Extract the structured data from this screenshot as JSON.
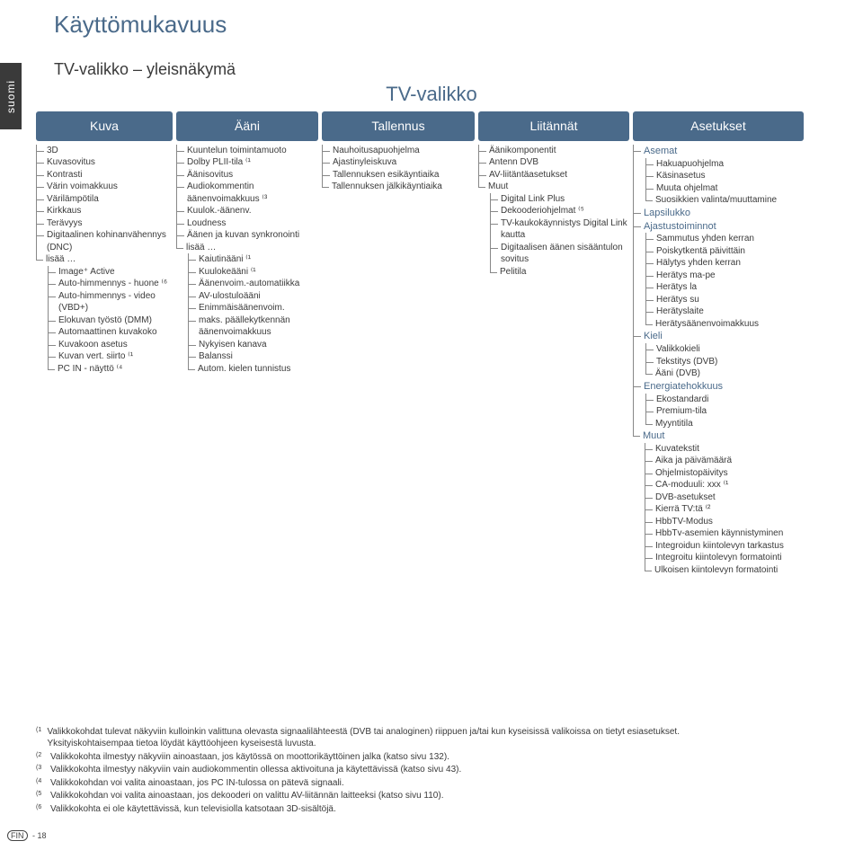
{
  "page_title": "Käyttömukavuus",
  "subtitle": "TV-valikko – yleisnäkymä",
  "side_tab": "suomi",
  "menu_title": "TV-valikko",
  "columns": {
    "kuva": {
      "header": "Kuva",
      "items": [
        {
          "t": "3D"
        },
        {
          "t": "Kuvasovitus"
        },
        {
          "t": "Kontrasti"
        },
        {
          "t": "Värin voimakkuus"
        },
        {
          "t": "Värilämpötila"
        },
        {
          "t": "Kirkkaus"
        },
        {
          "t": "Terävyys"
        },
        {
          "t": "Digitaalinen kohinanvähennys (DNC)"
        },
        {
          "t": "lisää …",
          "children": [
            {
              "t": "Image⁺ Active"
            },
            {
              "t": "Auto-himmennys - huone ⁽⁶"
            },
            {
              "t": "Auto-himmennys - video (VBD+)"
            },
            {
              "t": "Elokuvan työstö (DMM)"
            },
            {
              "t": "Automaattinen kuvakoko"
            },
            {
              "t": "Kuvakoon asetus"
            },
            {
              "t": "Kuvan vert. siirto ⁽¹"
            },
            {
              "t": "PC IN - näyttö ⁽⁴"
            }
          ]
        }
      ]
    },
    "aani": {
      "header": "Ääni",
      "items": [
        {
          "t": "Kuuntelun toimintamuoto"
        },
        {
          "t": "Dolby PLII-tila ⁽¹"
        },
        {
          "t": "Äänisovitus"
        },
        {
          "t": "Audiokommentin äänenvoimakkuus ⁽³"
        },
        {
          "t": "Kuulok.-äänenv."
        },
        {
          "t": "Loudness"
        },
        {
          "t": "Äänen ja kuvan synkronointi"
        },
        {
          "t": "lisää …",
          "children": [
            {
              "t": "Kaiutinääni ⁽¹"
            },
            {
              "t": "Kuulokeääni ⁽¹"
            },
            {
              "t": "Äänenvoim.-automatiikka"
            },
            {
              "t": "AV-ulostuloääni"
            },
            {
              "t": "Enimmäisäänenvoim."
            },
            {
              "t": "maks. päällekytkennän äänenvoimakkuus"
            },
            {
              "t": "Nykyisen kanava"
            },
            {
              "t": "Balanssi"
            },
            {
              "t": "Autom. kielen tunnistus"
            }
          ]
        }
      ]
    },
    "tallennus": {
      "header": "Tallennus",
      "items": [
        {
          "t": "Nauhoitusapuohjelma"
        },
        {
          "t": "Ajastinyleiskuva"
        },
        {
          "t": "Tallennuksen esikäyntiaika"
        },
        {
          "t": "Tallennuksen jälkikäyntiaika"
        }
      ]
    },
    "liitannat": {
      "header": "Liitännät",
      "items": [
        {
          "t": "Äänikomponentit"
        },
        {
          "t": "Antenn DVB"
        },
        {
          "t": "AV-liitäntäasetukset"
        },
        {
          "t": "Muut",
          "children": [
            {
              "t": "Digital Link Plus"
            },
            {
              "t": "Dekooderiohjelmat ⁽⁵"
            },
            {
              "t": "TV-kaukokäynnistys Digital Link kautta"
            },
            {
              "t": "Digitaalisen äänen sisääntulon sovitus"
            },
            {
              "t": "Pelitila"
            }
          ]
        }
      ]
    },
    "asetukset": {
      "header": "Asetukset",
      "items": [
        {
          "t": "Asemat",
          "hdr": true,
          "children": [
            {
              "t": "Hakuapuohjelma"
            },
            {
              "t": "Käsinasetus"
            },
            {
              "t": "Muuta ohjelmat"
            },
            {
              "t": "Suosikkien valinta/muuttamine"
            }
          ]
        },
        {
          "t": "Lapsilukko",
          "hdr": true
        },
        {
          "t": "Ajastustoiminnot",
          "hdr": true,
          "children": [
            {
              "t": "Sammutus yhden kerran"
            },
            {
              "t": "Poiskytkentä päivittäin"
            },
            {
              "t": "Hälytys yhden kerran"
            },
            {
              "t": "Herätys ma-pe"
            },
            {
              "t": "Herätys la"
            },
            {
              "t": "Herätys su"
            },
            {
              "t": "Herätyslaite"
            },
            {
              "t": "Herätysäänenvoimakkuus"
            }
          ]
        },
        {
          "t": "Kieli",
          "hdr": true,
          "children": [
            {
              "t": "Valikkokieli"
            },
            {
              "t": "Tekstitys (DVB)"
            },
            {
              "t": "Ääni (DVB)"
            }
          ]
        },
        {
          "t": "Energiatehokkuus",
          "hdr": true,
          "children": [
            {
              "t": "Ekostandardi"
            },
            {
              "t": "Premium-tila"
            },
            {
              "t": "Myyntitila"
            }
          ]
        },
        {
          "t": "Muut",
          "hdr": true,
          "children": [
            {
              "t": "Kuvatekstit"
            },
            {
              "t": "Aika ja päivämäärä"
            },
            {
              "t": "Ohjelmistopäivitys"
            },
            {
              "t": "CA-moduuli: xxx ⁽¹"
            },
            {
              "t": "DVB-asetukset"
            },
            {
              "t": "Kierrä TV:tä ⁽²"
            },
            {
              "t": "HbbTV-Modus"
            },
            {
              "t": "HbbTv-asemien käynnistyminen"
            },
            {
              "t": "Integroidun kiintolevyn tarkastus"
            },
            {
              "t": "Integroitu kiintolevyn formatointi"
            },
            {
              "t": "Ulkoisen kiintolevyn formatointi"
            }
          ]
        }
      ]
    }
  },
  "footnotes": [
    {
      "n": "(1",
      "t": "Valikkokohdat tulevat näkyviin kulloinkin valittuna olevasta signaalilähteestä (DVB tai analoginen) riippuen ja/tai kun kyseisissä valikoissa on tietyt esiasetukset. Yksityiskohtaisempaa tietoa löydät käyttöohjeen kyseisestä luvusta."
    },
    {
      "n": "(2",
      "t": "Valikkokohta ilmestyy näkyviin ainoastaan, jos käytössä on moottorikäyttöinen jalka (katso sivu 132)."
    },
    {
      "n": "(3",
      "t": "Valikkokohta ilmestyy näkyviin vain audiokommentin ollessa aktivoituna ja käytettävissä (katso sivu 43)."
    },
    {
      "n": "(4",
      "t": "Valikkokohdan voi valita ainoastaan, jos PC IN-tulossa on pätevä signaali."
    },
    {
      "n": "(5",
      "t": "Valikkokohdan voi valita ainoastaan, jos dekooderi on valittu AV-liitännän laitteeksi (katso sivu 110)."
    },
    {
      "n": "(6",
      "t": "Valikkokohta ei ole käytettävissä, kun televisiolla katsotaan 3D-sisältöjä."
    }
  ],
  "page_footer": {
    "region": "FIN",
    "page": "- 18"
  },
  "colors": {
    "accent": "#4a6a8a",
    "text": "#3a3a3a",
    "tree_line": "#888888",
    "background": "#ffffff",
    "side_tab_bg": "#3a3a3a"
  }
}
